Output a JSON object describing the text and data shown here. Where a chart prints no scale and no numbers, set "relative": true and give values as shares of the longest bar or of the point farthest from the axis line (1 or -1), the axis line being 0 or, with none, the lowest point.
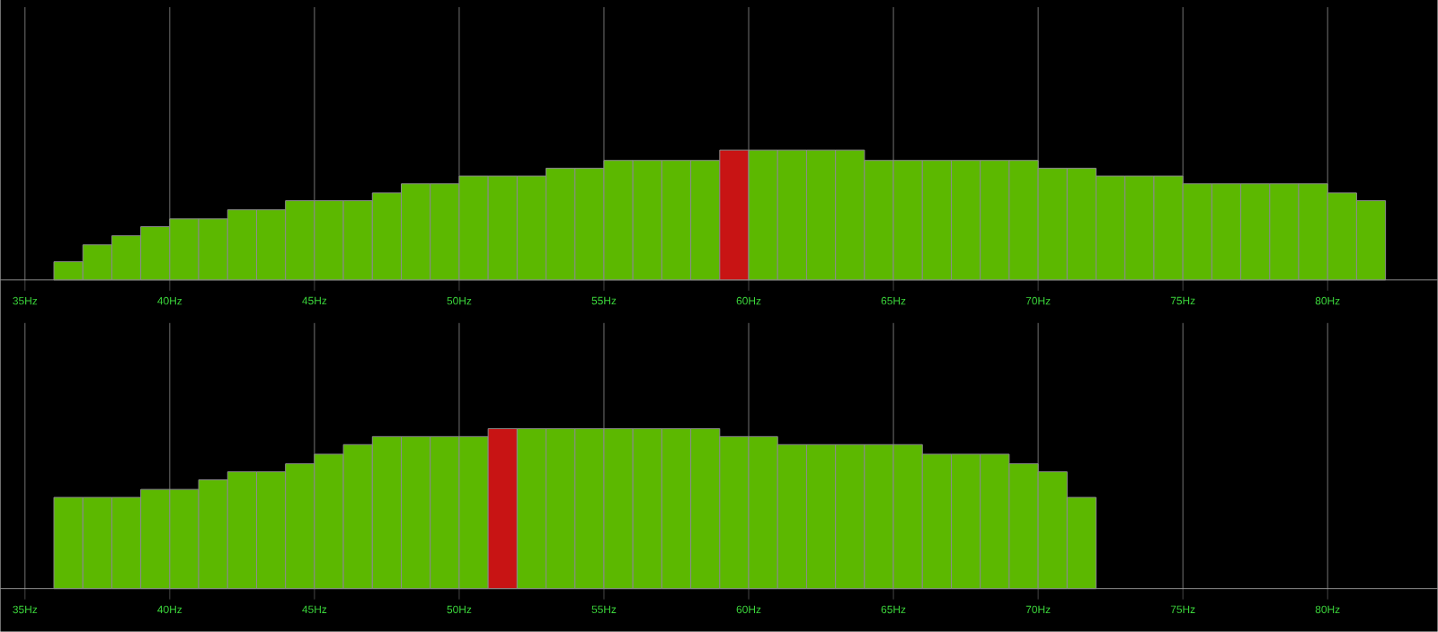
{
  "chart_data": [
    {
      "type": "bar",
      "relative": true,
      "grid": true,
      "tick_labels": "x",
      "xlim": [
        34.15,
        83.8
      ],
      "xticks": [
        {
          "value": 35,
          "label": "35Hz"
        },
        {
          "value": 40,
          "label": "40Hz"
        },
        {
          "value": 45,
          "label": "45Hz"
        },
        {
          "value": 50,
          "label": "50Hz"
        },
        {
          "value": 55,
          "label": "55Hz"
        },
        {
          "value": 60,
          "label": "60Hz"
        },
        {
          "value": 65,
          "label": "65Hz"
        },
        {
          "value": 70,
          "label": "70Hz"
        },
        {
          "value": 75,
          "label": "75Hz"
        },
        {
          "value": 80,
          "label": "80Hz"
        }
      ],
      "x": [
        36.5,
        37.5,
        38.5,
        39.5,
        40.5,
        41.5,
        42.5,
        43.5,
        44.5,
        45.5,
        46.5,
        47.5,
        48.5,
        49.5,
        50.5,
        51.5,
        52.5,
        53.5,
        54.5,
        55.5,
        56.5,
        57.5,
        58.5,
        59.5,
        60.5,
        61.5,
        62.5,
        63.5,
        64.5,
        65.5,
        66.5,
        67.5,
        68.5,
        69.5,
        70.5,
        71.5,
        72.5,
        73.5,
        74.5,
        75.5,
        76.5,
        77.5,
        78.5,
        79.5,
        80.5,
        81.5
      ],
      "values": [
        0.14,
        0.27,
        0.34,
        0.41,
        0.47,
        0.47,
        0.54,
        0.54,
        0.61,
        0.61,
        0.61,
        0.67,
        0.74,
        0.74,
        0.8,
        0.8,
        0.8,
        0.86,
        0.86,
        0.92,
        0.92,
        0.92,
        0.92,
        1,
        1,
        1,
        1,
        1,
        0.92,
        0.92,
        0.92,
        0.92,
        0.92,
        0.92,
        0.86,
        0.86,
        0.8,
        0.8,
        0.8,
        0.74,
        0.74,
        0.74,
        0.74,
        0.74,
        0.67,
        0.61
      ],
      "colors": [
        "#5cb800",
        "#5cb800",
        "#5cb800",
        "#5cb800",
        "#5cb800",
        "#5cb800",
        "#5cb800",
        "#5cb800",
        "#5cb800",
        "#5cb800",
        "#5cb800",
        "#5cb800",
        "#5cb800",
        "#5cb800",
        "#5cb800",
        "#5cb800",
        "#5cb800",
        "#5cb800",
        "#5cb800",
        "#5cb800",
        "#5cb800",
        "#5cb800",
        "#5cb800",
        "#c81414",
        "#5cb800",
        "#5cb800",
        "#5cb800",
        "#5cb800",
        "#5cb800",
        "#5cb800",
        "#5cb800",
        "#5cb800",
        "#5cb800",
        "#5cb800",
        "#5cb800",
        "#5cb800",
        "#5cb800",
        "#5cb800",
        "#5cb800",
        "#5cb800",
        "#5cb800",
        "#5cb800",
        "#5cb800",
        "#5cb800",
        "#5cb800",
        "#5cb800"
      ]
    },
    {
      "type": "bar",
      "relative": true,
      "grid": true,
      "tick_labels": "x",
      "xlim": [
        34.15,
        83.8
      ],
      "xticks": [
        {
          "value": 35,
          "label": "35Hz"
        },
        {
          "value": 40,
          "label": "40Hz"
        },
        {
          "value": 45,
          "label": "45Hz"
        },
        {
          "value": 50,
          "label": "50Hz"
        },
        {
          "value": 55,
          "label": "55Hz"
        },
        {
          "value": 60,
          "label": "60Hz"
        },
        {
          "value": 65,
          "label": "65Hz"
        },
        {
          "value": 70,
          "label": "70Hz"
        },
        {
          "value": 75,
          "label": "75Hz"
        },
        {
          "value": 80,
          "label": "80Hz"
        }
      ],
      "x": [
        36.5,
        37.5,
        38.5,
        39.5,
        40.5,
        41.5,
        42.5,
        43.5,
        44.5,
        45.5,
        46.5,
        47.5,
        48.5,
        49.5,
        50.5,
        51.5,
        52.5,
        53.5,
        54.5,
        55.5,
        56.5,
        57.5,
        58.5,
        59.5,
        60.5,
        61.5,
        62.5,
        63.5,
        64.5,
        65.5,
        66.5,
        67.5,
        68.5,
        69.5,
        70.5,
        71.5
      ],
      "values": [
        0.57,
        0.57,
        0.57,
        0.62,
        0.62,
        0.68,
        0.73,
        0.73,
        0.78,
        0.84,
        0.9,
        0.95,
        0.95,
        0.95,
        0.95,
        1,
        1,
        1,
        1,
        1,
        1,
        1,
        1,
        0.95,
        0.95,
        0.9,
        0.9,
        0.9,
        0.9,
        0.9,
        0.84,
        0.84,
        0.84,
        0.78,
        0.73,
        0.57
      ],
      "colors": [
        "#5cb800",
        "#5cb800",
        "#5cb800",
        "#5cb800",
        "#5cb800",
        "#5cb800",
        "#5cb800",
        "#5cb800",
        "#5cb800",
        "#5cb800",
        "#5cb800",
        "#5cb800",
        "#5cb800",
        "#5cb800",
        "#5cb800",
        "#c81414",
        "#5cb800",
        "#5cb800",
        "#5cb800",
        "#5cb800",
        "#5cb800",
        "#5cb800",
        "#5cb800",
        "#5cb800",
        "#5cb800",
        "#5cb800",
        "#5cb800",
        "#5cb800",
        "#5cb800",
        "#5cb800",
        "#5cb800",
        "#5cb800",
        "#5cb800",
        "#5cb800",
        "#5cb800",
        "#5cb800"
      ]
    }
  ]
}
